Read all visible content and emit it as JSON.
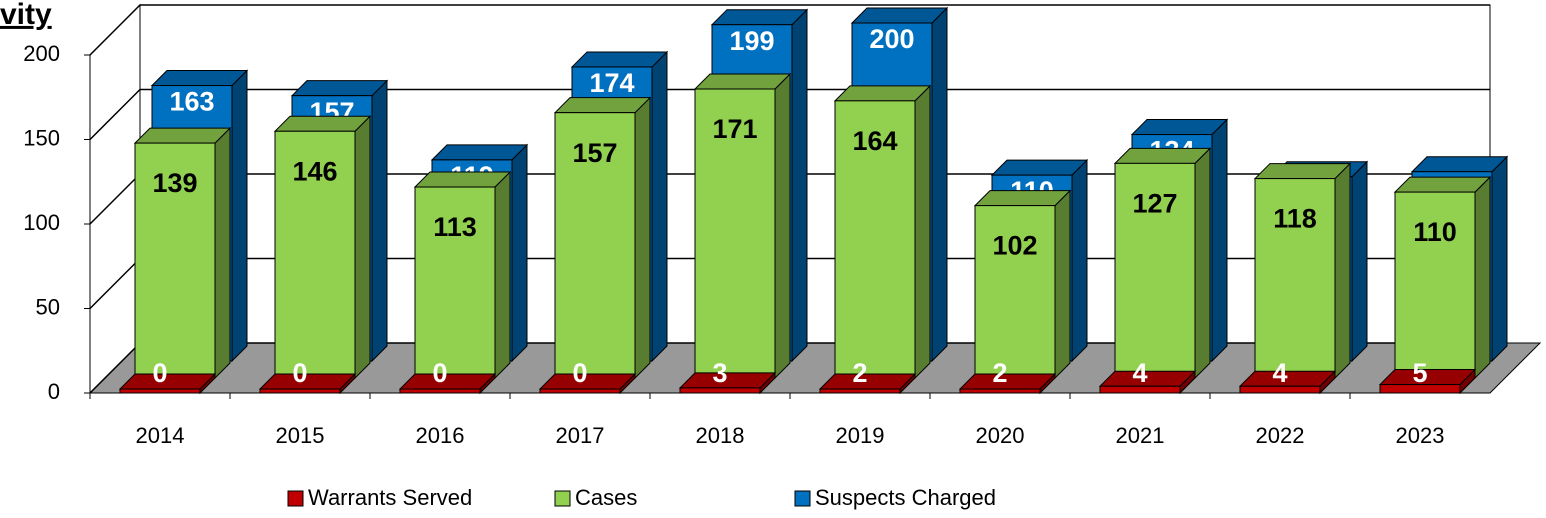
{
  "chart_data": {
    "type": "bar",
    "title": "vity",
    "categories": [
      "2014",
      "2015",
      "2016",
      "2017",
      "2018",
      "2019",
      "2020",
      "2021",
      "2022",
      "2023"
    ],
    "series": [
      {
        "name": "Warrants Served",
        "color": "#c00000",
        "values": [
          0,
          0,
          0,
          0,
          3,
          2,
          2,
          4,
          4,
          5
        ]
      },
      {
        "name": "Cases",
        "color": "#92d050",
        "values": [
          139,
          146,
          113,
          157,
          171,
          164,
          102,
          127,
          118,
          110
        ]
      },
      {
        "name": "Suspects Charged",
        "color": "#0070c0",
        "values": [
          163,
          157,
          119,
          174,
          199,
          200,
          110,
          134,
          109,
          112
        ]
      }
    ],
    "ylim": [
      0,
      200
    ],
    "yticks": [
      0,
      50,
      100,
      150,
      200
    ],
    "grid": true,
    "legend": "bottom"
  }
}
